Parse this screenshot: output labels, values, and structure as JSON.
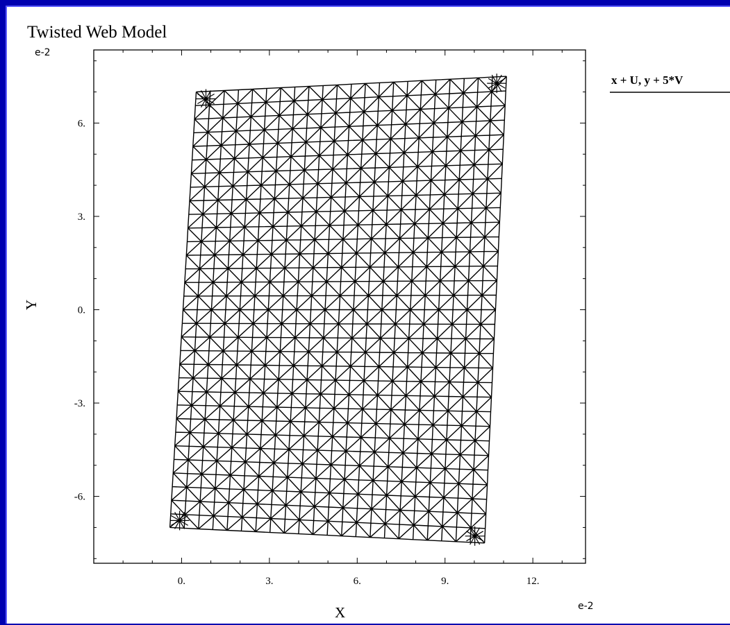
{
  "chart_data": {
    "type": "mesh",
    "title": "Twisted Web Model",
    "xlabel": "X",
    "ylabel": "Y",
    "x_exponent_label": "e-2",
    "y_exponent_label": "e-2",
    "xlim": [
      -3.0,
      13.8
    ],
    "ylim": [
      -8.15,
      8.35
    ],
    "x_ticks": [
      0,
      3,
      6,
      9,
      12
    ],
    "x_tick_labels": [
      "0.",
      "3.",
      "6.",
      "9.",
      "12."
    ],
    "y_ticks": [
      6,
      3,
      0,
      -3,
      -6
    ],
    "y_tick_labels": [
      "6.",
      "3.",
      "0.",
      "-3.",
      "-6."
    ],
    "legend": [
      "x + U, y + 5*V"
    ],
    "legend_position": "top-right",
    "grid": false,
    "mesh": {
      "element": "triangle",
      "rows": 32,
      "cols": 22,
      "corners": {
        "top_left": [
          0.5,
          7.0
        ],
        "top_right": [
          11.1,
          7.5
        ],
        "bottom_left": [
          -0.4,
          -7.0
        ],
        "bottom_right": [
          10.35,
          -7.5
        ]
      }
    },
    "line_color": "#000000"
  }
}
